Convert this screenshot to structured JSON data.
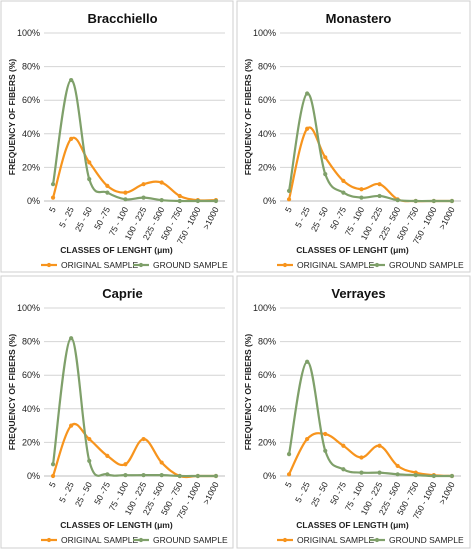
{
  "colors": {
    "original": "#F7941D",
    "ground": "#7FA06A"
  },
  "chart_data": [
    {
      "type": "line",
      "title": "Bracchiello",
      "xlabel": "CLASSES OF LENGHT (μm)",
      "ylabel": "FREQUENCY OF FIBERS (%)",
      "ylim": [
        0,
        100
      ],
      "yticks": [
        "0%",
        "20%",
        "40%",
        "60%",
        "80%",
        "100%"
      ],
      "categories": [
        "5",
        "5 - 25",
        "25 - 50",
        "50 -75",
        "75 - 100",
        "100 - 225",
        "225 - 500",
        "500 - 750",
        "750 - 1000",
        ">1000"
      ],
      "legend": "bottom",
      "series": [
        {
          "name": "ORIGINAL SAMPLE",
          "values": [
            2,
            37,
            23,
            9,
            5,
            10,
            11,
            3,
            0.5,
            0.5
          ]
        },
        {
          "name": "GROUND SAMPLE",
          "values": [
            10,
            72,
            13,
            5,
            1,
            2,
            0.5,
            0,
            0,
            0
          ]
        }
      ]
    },
    {
      "type": "line",
      "title": "Monastero",
      "xlabel": "CLASSES OF LENGHT (μm)",
      "ylabel": "FREQUENCY OF FIBERS (%)",
      "ylim": [
        0,
        100
      ],
      "yticks": [
        "0%",
        "20%",
        "40%",
        "60%",
        "80%",
        "100%"
      ],
      "categories": [
        "5",
        "5 - 25",
        "25 - 50",
        "50 -75",
        "75 - 100",
        "100 - 225",
        "225 - 500",
        "500 - 750",
        "750 - 1000",
        ">1000"
      ],
      "legend": "bottom",
      "series": [
        {
          "name": "ORIGINAL SAMPLE",
          "values": [
            1,
            43,
            26,
            12,
            7,
            10,
            1,
            0,
            0,
            0
          ]
        },
        {
          "name": "GROUND SAMPLE",
          "values": [
            6,
            64,
            16,
            5,
            2,
            3,
            0.5,
            0,
            0,
            0
          ]
        }
      ]
    },
    {
      "type": "line",
      "title": "Caprie",
      "xlabel": "CLASSES OF LENGTH (μm)",
      "ylabel": "FREQUENCY OF FIBERS (%)",
      "ylim": [
        0,
        100
      ],
      "yticks": [
        "0%",
        "20%",
        "40%",
        "60%",
        "80%",
        "100%"
      ],
      "categories": [
        "5",
        "5 - 25",
        "25 - 50",
        "50 -75",
        "75 - 100",
        "100 - 225",
        "225 - 500",
        "500 - 750",
        "750 - 1000",
        ">1000"
      ],
      "legend": "bottom",
      "series": [
        {
          "name": "ORIGINAL SAMPLE",
          "values": [
            0,
            30,
            22,
            12,
            7,
            22,
            8,
            0,
            0,
            0
          ]
        },
        {
          "name": "GROUND SAMPLE",
          "values": [
            7,
            82,
            9,
            1,
            0.5,
            0.5,
            0.5,
            0,
            0,
            0
          ]
        }
      ]
    },
    {
      "type": "line",
      "title": "Verrayes",
      "xlabel": "CLASSES OF LENGTH (μm)",
      "ylabel": "FREQUENCY OF FIBERS (%)",
      "ylim": [
        0,
        100
      ],
      "yticks": [
        "0%",
        "20%",
        "40%",
        "60%",
        "80%",
        "100%"
      ],
      "categories": [
        "5",
        "5 - 25",
        "25 - 50",
        "50 -75",
        "75 - 100",
        "100 - 225",
        "225 - 500",
        "500 - 750",
        "750 - 1000",
        ">1000"
      ],
      "legend": "bottom",
      "series": [
        {
          "name": "ORIGINAL SAMPLE",
          "values": [
            1,
            22,
            25,
            18,
            11,
            18,
            6,
            2,
            0.5,
            0
          ]
        },
        {
          "name": "GROUND SAMPLE",
          "values": [
            13,
            68,
            15,
            4,
            2,
            2,
            1,
            0.5,
            0,
            0
          ]
        }
      ]
    }
  ]
}
